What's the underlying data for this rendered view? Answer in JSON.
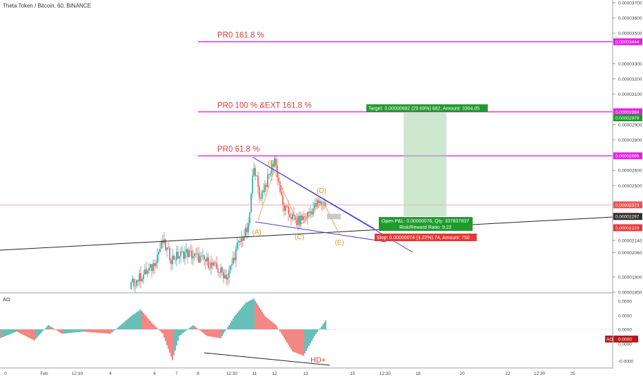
{
  "header": {
    "symbol": "Theta Token / Bitcoin, 60, BINANCE"
  },
  "chart_data": {
    "type": "candlestick",
    "price_axis": {
      "ticks": [
        "0.00003700",
        "0.00003600",
        "0.00003500",
        "0.00003300",
        "0.00003200",
        "0.00003100",
        "0.00002900",
        "0.00002800",
        "0.00002600",
        "0.00002500",
        "0.00002140",
        "0.00002060",
        "0.00001900",
        "0.00001800"
      ],
      "tick_values": [
        3700,
        3600,
        3500,
        3300,
        3200,
        3100,
        2900,
        2800,
        2600,
        2500,
        2140,
        2060,
        1900,
        1800
      ],
      "badges": [
        {
          "text": "0.00003444",
          "value": 3444,
          "bg": "#e91ee6",
          "fg": "#ffffff"
        },
        {
          "text": "0.00002984",
          "value": 2984,
          "bg": "#e91ee6",
          "fg": "#ffffff"
        },
        {
          "text": "0.00002979",
          "value": 2968,
          "bg": "#1e9b2c",
          "fg": "#ffffff"
        },
        {
          "text": "0.00002695",
          "value": 2695,
          "bg": "#e91ee6",
          "fg": "#ffffff"
        },
        {
          "text": "0.00002373",
          "value": 2373,
          "bg": "#ef5350",
          "fg": "#ffffff"
        },
        {
          "text": "39:03",
          "value": 2343,
          "bg": "#ffffff",
          "fg": "#ef5350"
        },
        {
          "text": "0.00002297",
          "value": 2297,
          "bg": "#333333",
          "fg": "#ffffff"
        },
        {
          "text": "0.00002223",
          "value": 2223,
          "bg": "#e53935",
          "fg": "#ffffff"
        }
      ]
    },
    "ao_axis": {
      "ticks": [
        "0.0000",
        "0.0000",
        "0.0000",
        "0.0000",
        "0.0000",
        "-0.0000"
      ],
      "tick_values": [
        1.0,
        0.5,
        0.0,
        -0.5,
        -1.0,
        -2.0
      ],
      "badge": {
        "text": "0.0000",
        "label": "AO"
      }
    },
    "x_axis": {
      "labels": [
        "0",
        "Feb",
        "12:30",
        "4",
        "6",
        "7",
        "8",
        "12:30",
        "11",
        "12",
        "13",
        "15",
        "12:30",
        "18",
        "20",
        "22",
        "12:30",
        "25"
      ],
      "bars": [
        0,
        32,
        56,
        80,
        110,
        142,
        143,
        168,
        190,
        206,
        222,
        256,
        280,
        305,
        336,
        368,
        394,
        416
      ]
    },
    "levels": [
      {
        "label": "PR0 161.8 %",
        "value": 3444
      },
      {
        "label": "PR0 100 % &EXT 161.8 %",
        "value": 2984
      },
      {
        "label": "PR0 61.8 %",
        "value": 2695
      }
    ],
    "current_price": 2373,
    "position": {
      "entry": 2297,
      "target": 2979,
      "stop": 2223,
      "target_label": "Target: 0.00000682 (29.69%) 682, Amount: 3304.05",
      "pnl_label": "Open P&L: 0.00000076, Qty: 337837837",
      "rr_label": "Risk/Reward Ratio: 9.22",
      "stop_label": "Stop: 0.00000074 (3.22%) 74, Amount: 750"
    },
    "wave_labels": [
      {
        "text": "(A)",
        "bar": 186,
        "value": 2260
      },
      {
        "text": "(B)",
        "bar": 198,
        "value": 2700
      },
      {
        "text": "(C)",
        "bar": 218,
        "value": 2240
      },
      {
        "text": "(D)",
        "bar": 233,
        "value": 2460
      },
      {
        "text": "(E)",
        "bar": 246,
        "value": 2200
      }
    ],
    "divergence_label": "HD+",
    "ao_title": "AO"
  }
}
